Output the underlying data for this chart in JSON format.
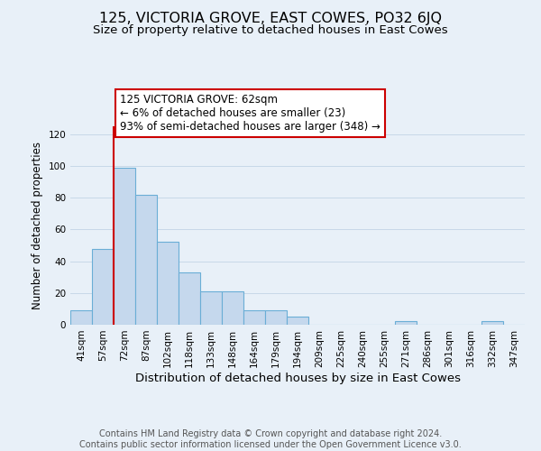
{
  "title": "125, VICTORIA GROVE, EAST COWES, PO32 6JQ",
  "subtitle": "Size of property relative to detached houses in East Cowes",
  "xlabel": "Distribution of detached houses by size in East Cowes",
  "ylabel": "Number of detached properties",
  "footer_lines": [
    "Contains HM Land Registry data © Crown copyright and database right 2024.",
    "Contains public sector information licensed under the Open Government Licence v3.0."
  ],
  "bar_labels": [
    "41sqm",
    "57sqm",
    "72sqm",
    "87sqm",
    "102sqm",
    "118sqm",
    "133sqm",
    "148sqm",
    "164sqm",
    "179sqm",
    "194sqm",
    "209sqm",
    "225sqm",
    "240sqm",
    "255sqm",
    "271sqm",
    "286sqm",
    "301sqm",
    "316sqm",
    "332sqm",
    "347sqm"
  ],
  "bar_values": [
    9,
    48,
    99,
    82,
    52,
    33,
    21,
    21,
    9,
    9,
    5,
    0,
    0,
    0,
    0,
    2,
    0,
    0,
    0,
    2,
    0
  ],
  "bar_color": "#c5d8ed",
  "bar_edge_color": "#6aaed6",
  "annotation_line1": "125 VICTORIA GROVE: 62sqm",
  "annotation_line2": "← 6% of detached houses are smaller (23)",
  "annotation_line3": "93% of semi-detached houses are larger (348) →",
  "annotation_box_facecolor": "#ffffff",
  "annotation_box_edgecolor": "#cc0000",
  "vline_color": "#cc0000",
  "vline_x": 1.5,
  "ylim": [
    0,
    125
  ],
  "yticks": [
    0,
    20,
    40,
    60,
    80,
    100,
    120
  ],
  "grid_color": "#c8d8e8",
  "background_color": "#e8f0f8",
  "title_fontsize": 11.5,
  "subtitle_fontsize": 9.5,
  "xlabel_fontsize": 9.5,
  "ylabel_fontsize": 8.5,
  "tick_fontsize": 7.5,
  "annotation_fontsize": 8.5,
  "footer_fontsize": 7.0
}
